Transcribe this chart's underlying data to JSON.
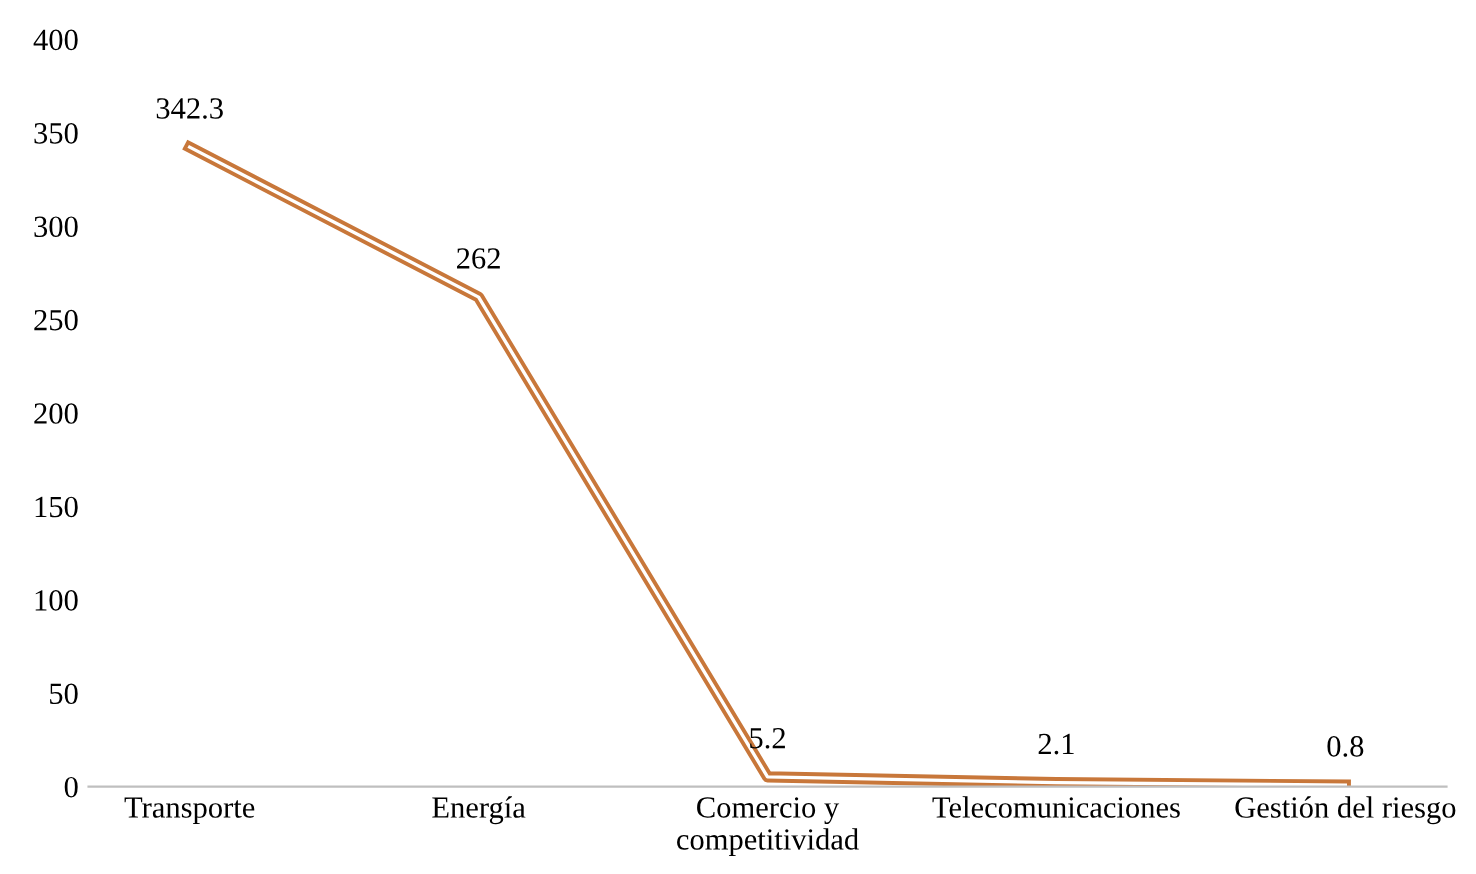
{
  "chart_data": {
    "type": "line",
    "categories": [
      "Transporte",
      "Energía",
      "Comercio y\ncompetitividad",
      "Telecomunicaciones",
      "Gestión del riesgo"
    ],
    "series": [
      {
        "color": "#c8773a",
        "values": [
          342.3,
          262,
          5.2,
          2.1,
          0.8
        ]
      }
    ],
    "ylim": [
      0,
      400
    ],
    "yticks": [
      0,
      50,
      100,
      150,
      200,
      250,
      300,
      350,
      400
    ],
    "data_labels": true,
    "grid": false,
    "marker": "none",
    "line_style": "solid"
  }
}
